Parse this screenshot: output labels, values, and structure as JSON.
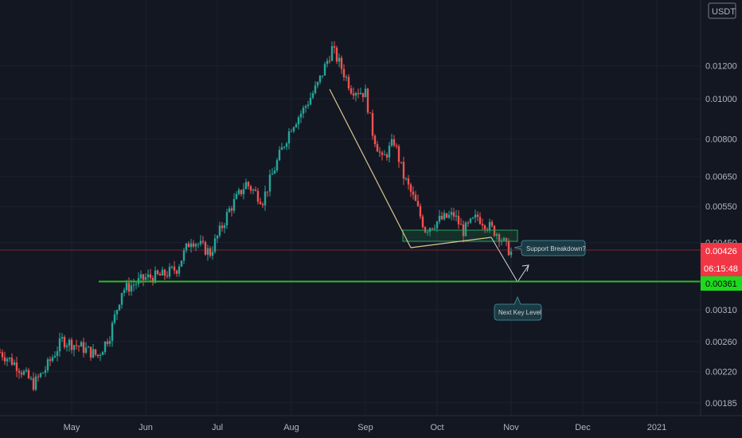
{
  "chart_data": {
    "type": "candlestick",
    "symbol_currency": "USDT",
    "y_scale": "log",
    "ylim": [
      0.0018,
      0.0164
    ],
    "y_ticks": [
      "0.01200",
      "0.01000",
      "0.00800",
      "0.00650",
      "0.00550",
      "0.00450",
      "0.00310",
      "0.00260",
      "0.00220",
      "0.00185"
    ],
    "x_ticks": [
      "May",
      "Jun",
      "Jul",
      "Aug",
      "Sep",
      "Oct",
      "Nov",
      "Dec",
      "2021"
    ],
    "last_price_label": "0.00426",
    "countdown_label": "06:15:48",
    "target_level_label": "0.00361",
    "target_level": 0.00361,
    "last_price": 0.00426,
    "annotations": [
      {
        "text": "Support Breakdown?"
      },
      {
        "text": "Next Key Level"
      }
    ],
    "price_path": [
      {
        "x": "2020-04-01",
        "y": 0.00245
      },
      {
        "x": "2020-04-08",
        "y": 0.00228
      },
      {
        "x": "2020-04-15",
        "y": 0.00205
      },
      {
        "x": "2020-04-20",
        "y": 0.00223
      },
      {
        "x": "2020-04-27",
        "y": 0.00262
      },
      {
        "x": "2020-05-05",
        "y": 0.00252
      },
      {
        "x": "2020-05-12",
        "y": 0.0024
      },
      {
        "x": "2020-05-17",
        "y": 0.0027
      },
      {
        "x": "2020-05-22",
        "y": 0.00345
      },
      {
        "x": "2020-06-01",
        "y": 0.0037
      },
      {
        "x": "2020-06-08",
        "y": 0.00375
      },
      {
        "x": "2020-06-14",
        "y": 0.0039
      },
      {
        "x": "2020-06-20",
        "y": 0.0046
      },
      {
        "x": "2020-06-28",
        "y": 0.00425
      },
      {
        "x": "2020-07-06",
        "y": 0.0054
      },
      {
        "x": "2020-07-13",
        "y": 0.00625
      },
      {
        "x": "2020-07-20",
        "y": 0.0057
      },
      {
        "x": "2020-07-27",
        "y": 0.0073
      },
      {
        "x": "2020-08-01",
        "y": 0.0086
      },
      {
        "x": "2020-08-06",
        "y": 0.0094
      },
      {
        "x": "2020-08-12",
        "y": 0.0108
      },
      {
        "x": "2020-08-18",
        "y": 0.0132
      },
      {
        "x": "2020-08-21",
        "y": 0.0122
      },
      {
        "x": "2020-08-26",
        "y": 0.0106
      },
      {
        "x": "2020-09-01",
        "y": 0.0103
      },
      {
        "x": "2020-09-04",
        "y": 0.0083
      },
      {
        "x": "2020-09-08",
        "y": 0.0071
      },
      {
        "x": "2020-09-13",
        "y": 0.0079
      },
      {
        "x": "2020-09-17",
        "y": 0.0065
      },
      {
        "x": "2020-09-22",
        "y": 0.0056
      },
      {
        "x": "2020-09-26",
        "y": 0.00485
      },
      {
        "x": "2020-10-02",
        "y": 0.0051
      },
      {
        "x": "2020-10-08",
        "y": 0.00525
      },
      {
        "x": "2020-10-12",
        "y": 0.0048
      },
      {
        "x": "2020-10-18",
        "y": 0.0052
      },
      {
        "x": "2020-10-24",
        "y": 0.00485
      },
      {
        "x": "2020-10-27",
        "y": 0.0047
      },
      {
        "x": "2020-10-30",
        "y": 0.0044
      },
      {
        "x": "2020-11-01",
        "y": 0.00426
      }
    ]
  }
}
